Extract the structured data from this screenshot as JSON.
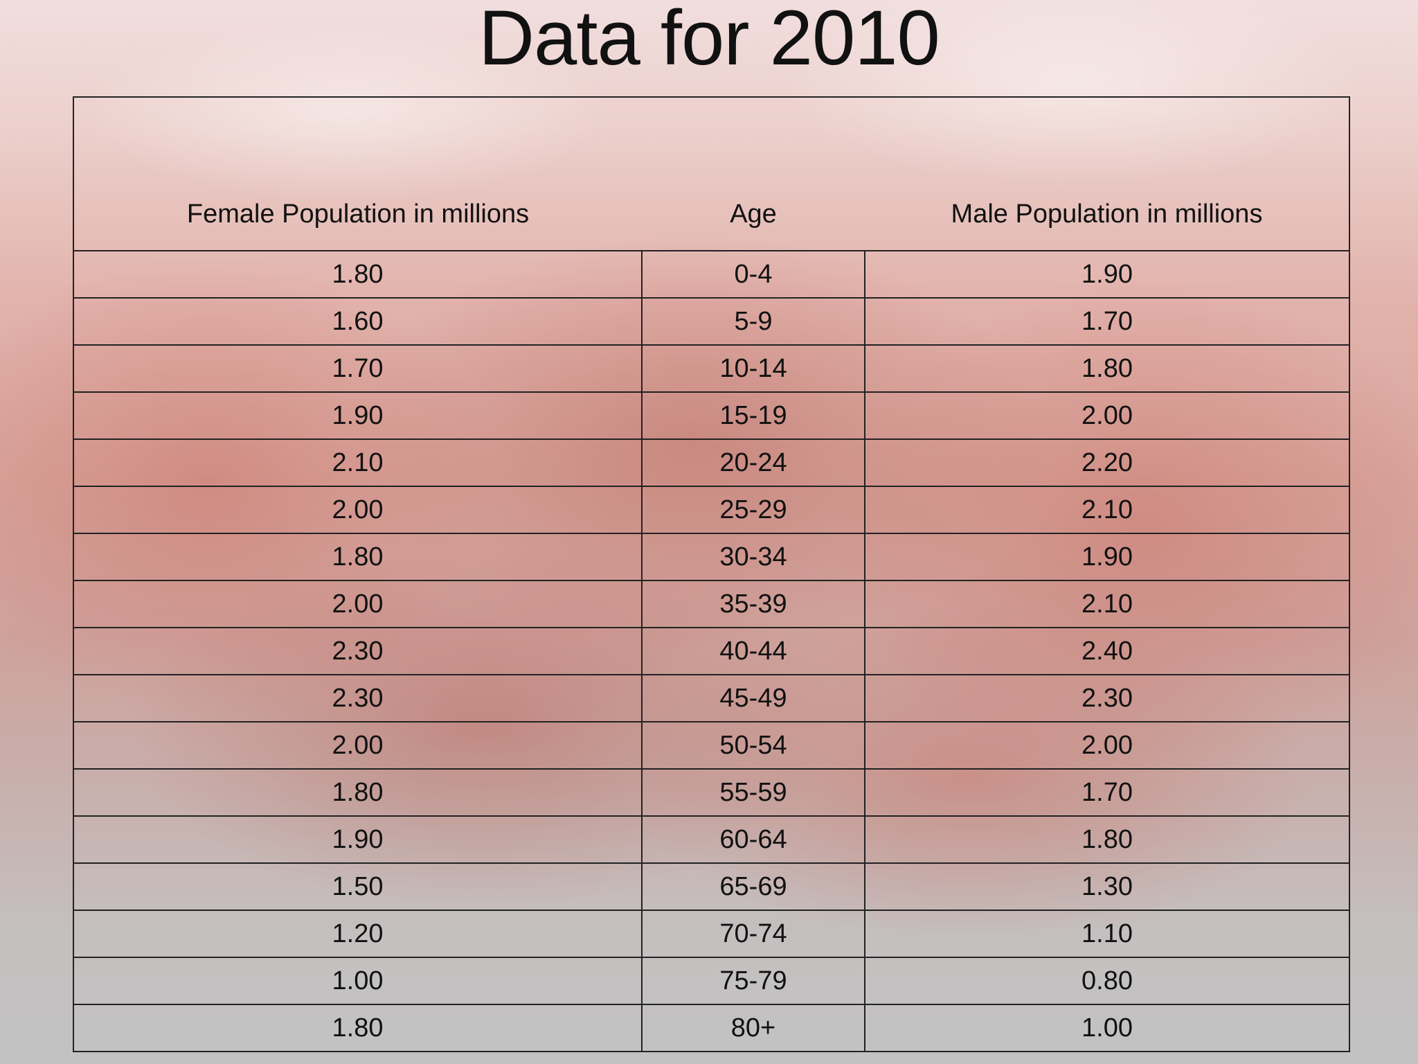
{
  "title": "Data for 2010",
  "colors": {
    "text": "#111111",
    "grid": "#222222"
  },
  "chart_data": {
    "type": "table",
    "title": "Data for 2010",
    "columns": [
      "Female Population in millions",
      "Age",
      "Male Population in  millions"
    ],
    "rows": [
      [
        "1.80",
        "0-4",
        "1.90"
      ],
      [
        "1.60",
        "5-9",
        "1.70"
      ],
      [
        "1.70",
        "10-14",
        "1.80"
      ],
      [
        "1.90",
        "15-19",
        "2.00"
      ],
      [
        "2.10",
        "20-24",
        "2.20"
      ],
      [
        "2.00",
        "25-29",
        "2.10"
      ],
      [
        "1.80",
        "30-34",
        "1.90"
      ],
      [
        "2.00",
        "35-39",
        "2.10"
      ],
      [
        "2.30",
        "40-44",
        "2.40"
      ],
      [
        "2.30",
        "45-49",
        "2.30"
      ],
      [
        "2.00",
        "50-54",
        "2.00"
      ],
      [
        "1.80",
        "55-59",
        "1.70"
      ],
      [
        "1.90",
        "60-64",
        "1.80"
      ],
      [
        "1.50",
        "65-69",
        "1.30"
      ],
      [
        "1.20",
        "70-74",
        "1.10"
      ],
      [
        "1.00",
        "75-79",
        "0.80"
      ],
      [
        "1.80",
        "80+",
        "1.00"
      ]
    ]
  }
}
